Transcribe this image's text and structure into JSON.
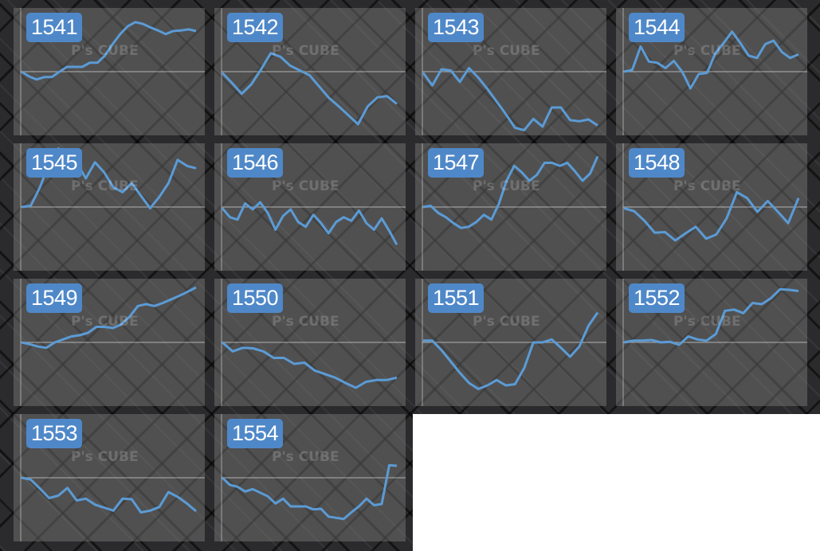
{
  "watermark": "P's CUBE",
  "line_color": "#5b9bd5",
  "badge_color": "#4f88c8",
  "chart_data": [
    {
      "type": "line",
      "title": "1541",
      "ylim": [
        -1,
        1
      ],
      "grid": false,
      "values": [
        0,
        -0.08,
        -0.13,
        -0.09,
        -0.09,
        0,
        0.08,
        0.08,
        0.08,
        0.15,
        0.15,
        0.27,
        0.46,
        0.63,
        0.76,
        0.83,
        0.8,
        0.74,
        0.69,
        0.63,
        0.68,
        0.69,
        0.71,
        0.68
      ]
    },
    {
      "type": "line",
      "title": "1542",
      "ylim": [
        -1,
        1
      ],
      "grid": false,
      "values": [
        -0.02,
        -0.19,
        -0.37,
        -0.21,
        0.04,
        0.31,
        0.25,
        0.1,
        0.02,
        -0.06,
        -0.25,
        -0.44,
        -0.58,
        -0.73,
        -0.88,
        -0.58,
        -0.43,
        -0.41,
        -0.54
      ]
    },
    {
      "type": "line",
      "title": "1543",
      "ylim": [
        -1,
        1
      ],
      "grid": false,
      "values": [
        -0.02,
        -0.23,
        0.04,
        0.02,
        -0.17,
        0.06,
        -0.1,
        -0.29,
        -0.5,
        -0.71,
        -0.94,
        -0.98,
        -0.79,
        -0.92,
        -0.6,
        -0.6,
        -0.81,
        -0.83,
        -0.8,
        -0.9
      ]
    },
    {
      "type": "line",
      "title": "1544",
      "ylim": [
        -1,
        1
      ],
      "grid": false,
      "values": [
        0,
        0.03,
        0.42,
        0.17,
        0.15,
        0.06,
        0.18,
        0,
        -0.28,
        -0.04,
        -0.02,
        0.31,
        0.48,
        0.67,
        0.48,
        0.27,
        0.23,
        0.46,
        0.52,
        0.33,
        0.23,
        0.29
      ]
    },
    {
      "type": "line",
      "title": "1545",
      "ylim": [
        -1,
        1
      ],
      "grid": false,
      "values": [
        0,
        0.02,
        0.33,
        0.73,
        0.98,
        0.92,
        0.75,
        0.48,
        0.75,
        0.58,
        0.33,
        0.25,
        0.4,
        0.19,
        -0.02,
        0.17,
        0.4,
        0.79,
        0.69,
        0.65
      ]
    },
    {
      "type": "line",
      "title": "1546",
      "ylim": [
        -1,
        1
      ],
      "grid": false,
      "values": [
        -0.02,
        -0.17,
        -0.21,
        0.06,
        -0.04,
        0.08,
        -0.1,
        -0.38,
        -0.15,
        -0.04,
        -0.25,
        -0.33,
        -0.13,
        -0.27,
        -0.44,
        -0.25,
        -0.17,
        -0.23,
        -0.06,
        -0.27,
        -0.38,
        -0.19,
        -0.4,
        -0.63
      ]
    },
    {
      "type": "line",
      "title": "1547",
      "ylim": [
        -1,
        1
      ],
      "grid": false,
      "values": [
        0,
        0.02,
        -0.1,
        -0.17,
        -0.27,
        -0.35,
        -0.33,
        -0.25,
        -0.13,
        -0.21,
        0.06,
        0.44,
        0.69,
        0.58,
        0.44,
        0.54,
        0.74,
        0.74,
        0.69,
        0.74,
        0.6,
        0.44,
        0.56,
        0.85
      ]
    },
    {
      "type": "line",
      "title": "1548",
      "ylim": [
        -1,
        1
      ],
      "grid": false,
      "values": [
        -0.02,
        -0.07,
        -0.23,
        -0.43,
        -0.42,
        -0.56,
        -0.44,
        -0.33,
        -0.53,
        -0.46,
        -0.19,
        0.25,
        0.15,
        -0.08,
        0.1,
        -0.08,
        -0.27,
        0.15
      ]
    },
    {
      "type": "line",
      "title": "1549",
      "ylim": [
        -1,
        1
      ],
      "grid": false,
      "values": [
        0,
        -0.03,
        -0.07,
        -0.09,
        0,
        0.05,
        0.1,
        0.12,
        0.16,
        0.26,
        0.26,
        0.24,
        0.3,
        0.43,
        0.61,
        0.64,
        0.61,
        0.66,
        0.72,
        0.78,
        0.85,
        0.92
      ]
    },
    {
      "type": "line",
      "title": "1550",
      "ylim": [
        -1,
        1
      ],
      "grid": false,
      "values": [
        0,
        -0.15,
        -0.09,
        -0.1,
        -0.15,
        -0.26,
        -0.26,
        -0.36,
        -0.34,
        -0.47,
        -0.53,
        -0.59,
        -0.68,
        -0.76,
        -0.66,
        -0.63,
        -0.63,
        -0.59
      ]
    },
    {
      "type": "line",
      "title": "1551",
      "ylim": [
        -1,
        1
      ],
      "grid": false,
      "values": [
        0.03,
        0.03,
        -0.13,
        -0.32,
        -0.51,
        -0.68,
        -0.78,
        -0.72,
        -0.63,
        -0.72,
        -0.7,
        -0.43,
        0,
        0,
        0.05,
        -0.09,
        -0.24,
        -0.07,
        0.28,
        0.5
      ]
    },
    {
      "type": "line",
      "title": "1552",
      "ylim": [
        -1,
        1
      ],
      "grid": false,
      "values": [
        0,
        0.03,
        0.03,
        0.04,
        0,
        0.01,
        -0.04,
        0.1,
        0.05,
        0.03,
        0.14,
        0.53,
        0.55,
        0.49,
        0.66,
        0.64,
        0.74,
        0.89,
        0.88,
        0.86
      ]
    },
    {
      "type": "line",
      "title": "1553",
      "ylim": [
        -1,
        1
      ],
      "grid": false,
      "values": [
        0,
        -0.03,
        -0.18,
        -0.34,
        -0.3,
        -0.17,
        -0.38,
        -0.35,
        -0.45,
        -0.5,
        -0.55,
        -0.35,
        -0.36,
        -0.58,
        -0.55,
        -0.49,
        -0.24,
        -0.32,
        -0.43,
        -0.56
      ]
    },
    {
      "type": "line",
      "title": "1554",
      "ylim": [
        -1,
        1
      ],
      "grid": false,
      "values": [
        0,
        -0.12,
        -0.15,
        -0.23,
        -0.19,
        -0.25,
        -0.31,
        -0.43,
        -0.35,
        -0.48,
        -0.48,
        -0.48,
        -0.53,
        -0.52,
        -0.65,
        -0.67,
        -0.69,
        -0.58,
        -0.48,
        -0.35,
        -0.46,
        -0.44,
        0.21,
        0.2
      ]
    }
  ]
}
